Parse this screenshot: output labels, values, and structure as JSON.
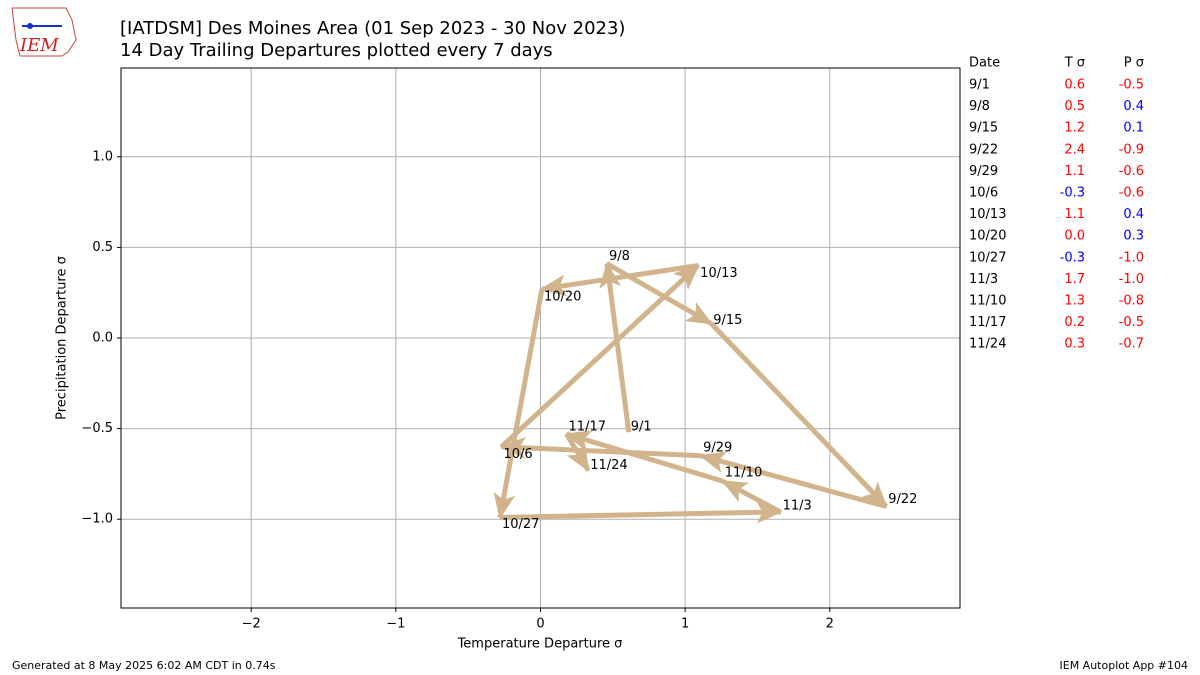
{
  "logo_text": "IEM",
  "chart_data": {
    "type": "arrow-path",
    "title": "[IATDSM] Des Moines Area (01 Sep 2023 - 30 Nov 2023)",
    "subtitle": "14 Day Trailing Departures plotted every 7 days",
    "x_label": "Temperature Departure σ",
    "y_label": "Precipitation Departure σ",
    "categories": [
      "9/1",
      "9/8",
      "9/15",
      "9/22",
      "9/29",
      "10/6",
      "10/13",
      "10/20",
      "10/27",
      "11/3",
      "11/10",
      "11/17",
      "11/24"
    ],
    "x": [
      0.61,
      0.46,
      1.18,
      2.39,
      1.11,
      -0.27,
      1.09,
      0.01,
      -0.28,
      1.66,
      1.26,
      0.18,
      0.33
    ],
    "values": [
      -0.52,
      0.41,
      0.08,
      -0.93,
      -0.65,
      -0.6,
      0.4,
      0.27,
      -0.99,
      -0.96,
      -0.79,
      -0.53,
      -0.73
    ],
    "x_labels": [
      "0.6",
      "0.5",
      "1.2",
      "2.4",
      "1.1",
      "-0.3",
      "1.1",
      "0.0",
      "-0.3",
      "1.7",
      "1.3",
      "0.2",
      "0.3"
    ],
    "value_labels": [
      "-0.5",
      "0.4",
      "0.1",
      "-0.9",
      "-0.6",
      "-0.6",
      "0.4",
      "0.3",
      "-1.0",
      "-1.0",
      "-0.8",
      "-0.5",
      "-0.7"
    ],
    "color": "#d2b48c",
    "warm_color": "#ff0000",
    "cold_color": "#0000ff",
    "xlim": [
      -2.9,
      2.9
    ],
    "ylim": [
      -1.49,
      1.49
    ],
    "xticks": [
      {
        "value": -2,
        "label": "−2"
      },
      {
        "value": -1,
        "label": "−1"
      },
      0,
      1,
      2
    ],
    "yticks": [
      {
        "value": -1,
        "label": "−1.0"
      },
      {
        "value": -0.5,
        "label": "−0.5"
      },
      {
        "value": 0,
        "label": "0.0"
      },
      {
        "value": 0.5,
        "label": "0.5"
      },
      {
        "value": 1,
        "label": "1.0"
      }
    ],
    "grid": true,
    "table_headers": [
      "Date",
      "T σ",
      "P σ"
    ],
    "footer_left": "Generated at 8 May 2025 6:02 AM CDT in 0.74s",
    "footer_right": "IEM Autoplot App #104"
  }
}
